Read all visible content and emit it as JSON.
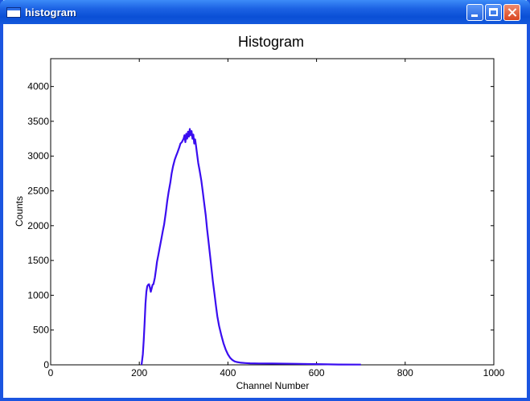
{
  "window": {
    "title": "histogram"
  },
  "chart_data": {
    "type": "line",
    "title": "Histogram",
    "xlabel": "Channel Number",
    "ylabel": "Counts",
    "xlim": [
      0,
      1000
    ],
    "ylim": [
      0,
      4400
    ],
    "xticks": [
      0,
      200,
      400,
      600,
      800,
      1000
    ],
    "yticks": [
      0,
      500,
      1000,
      1500,
      2000,
      2500,
      3000,
      3500,
      4000
    ],
    "grid": false,
    "color": "#3a0df0",
    "series": [
      {
        "x": [
          205,
          208,
          210,
          212,
          214,
          216,
          218,
          220,
          222,
          224,
          226,
          228,
          230,
          232,
          235,
          238,
          240,
          243,
          246,
          250,
          253,
          256,
          260,
          263,
          266,
          270,
          273,
          276,
          280,
          283,
          286,
          290,
          293,
          296,
          300,
          302,
          304,
          306,
          308,
          310,
          312,
          314,
          316,
          318,
          320,
          322,
          324,
          326,
          328,
          330,
          333,
          336,
          340,
          343,
          346,
          350,
          353,
          356,
          360,
          363,
          366,
          370,
          373,
          376,
          380,
          385,
          390,
          395,
          400,
          405,
          410,
          415,
          420,
          430,
          440,
          450,
          470,
          500,
          550,
          600,
          650,
          700
        ],
        "y": [
          0,
          150,
          350,
          600,
          880,
          1050,
          1130,
          1150,
          1160,
          1110,
          1050,
          1100,
          1150,
          1160,
          1250,
          1380,
          1480,
          1580,
          1680,
          1820,
          1920,
          2020,
          2200,
          2350,
          2480,
          2620,
          2750,
          2850,
          2950,
          3000,
          3050,
          3120,
          3180,
          3200,
          3250,
          3300,
          3200,
          3320,
          3250,
          3350,
          3280,
          3390,
          3300,
          3360,
          3250,
          3310,
          3180,
          3240,
          3150,
          3050,
          2900,
          2800,
          2650,
          2500,
          2350,
          2150,
          1950,
          1780,
          1550,
          1380,
          1200,
          1000,
          850,
          700,
          560,
          430,
          310,
          220,
          150,
          100,
          70,
          50,
          40,
          30,
          25,
          22,
          20,
          18,
          15,
          10,
          5,
          3
        ]
      }
    ]
  }
}
